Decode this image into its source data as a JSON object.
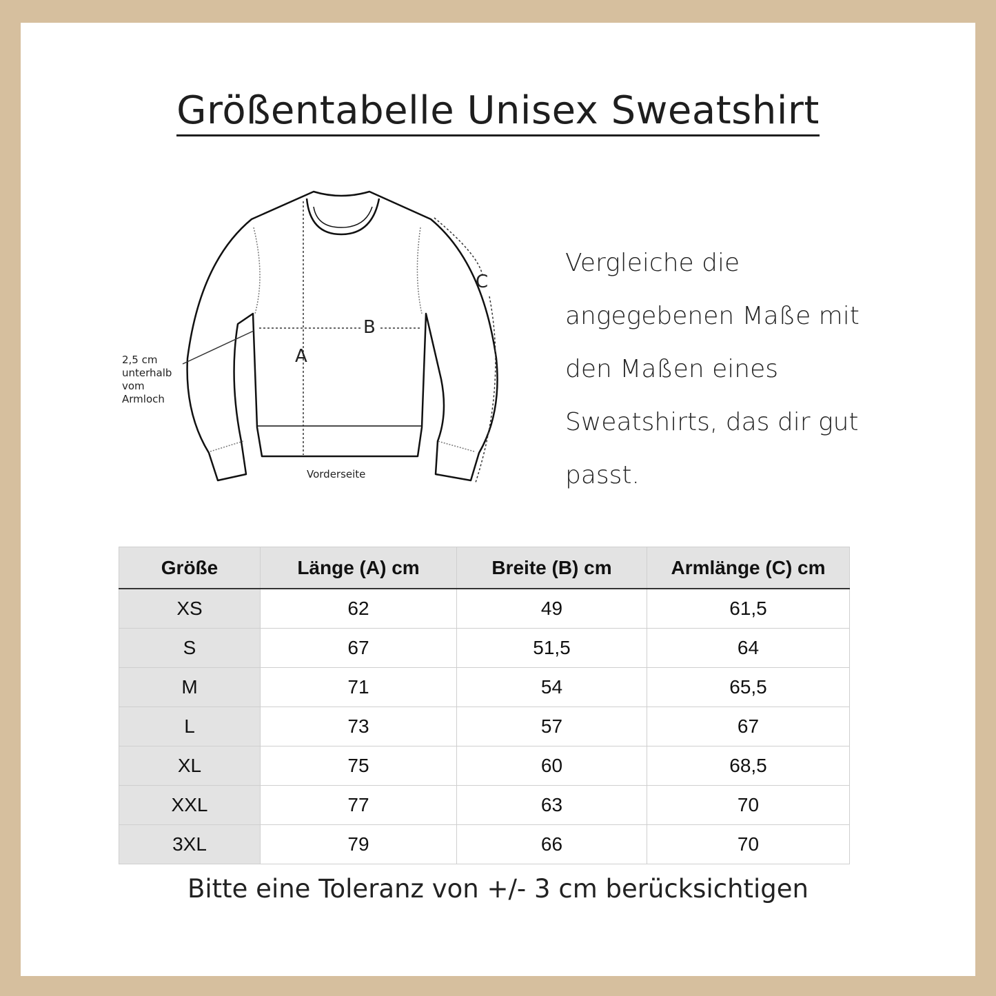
{
  "title": "Größentabelle Unisex Sweatshirt",
  "description": "Vergleiche die angegebenen Maße mit den Maßen eines Sweatshirts, das dir gut passt.",
  "diagram": {
    "label_a": "A",
    "label_b": "B",
    "label_c": "C",
    "note": "2,5 cm\nunterhalb\nvom\nArmloch",
    "caption": "Vorderseite"
  },
  "table": {
    "headers": [
      "Größe",
      "Länge (A) cm",
      "Breite (B) cm",
      "Armlänge (C) cm"
    ],
    "rows": [
      [
        "XS",
        "62",
        "49",
        "61,5"
      ],
      [
        "S",
        "67",
        "51,5",
        "64"
      ],
      [
        "M",
        "71",
        "54",
        "65,5"
      ],
      [
        "L",
        "73",
        "57",
        "67"
      ],
      [
        "XL",
        "75",
        "60",
        "68,5"
      ],
      [
        "XXL",
        "77",
        "63",
        "70"
      ],
      [
        "3XL",
        "79",
        "66",
        "70"
      ]
    ]
  },
  "footer": "Bitte eine Toleranz von +/- 3 cm berücksichtigen",
  "colors": {
    "frame": "#d6bf9e",
    "header_bg": "#e3e3e3"
  }
}
